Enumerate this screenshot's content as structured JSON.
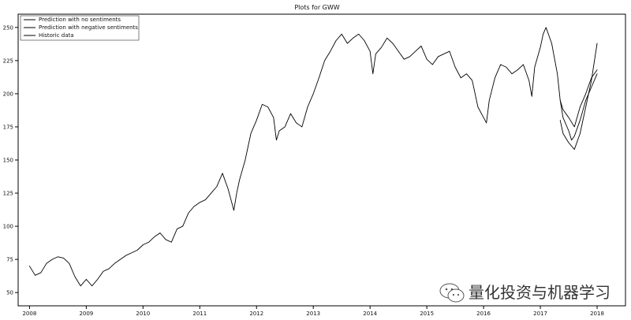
{
  "chart_data": {
    "type": "line",
    "title": "Plots for GWW",
    "xlabel": "",
    "ylabel": "",
    "xlim": [
      2007.8,
      2018.5
    ],
    "ylim": [
      40,
      260
    ],
    "x_ticks": [
      2008,
      2009,
      2010,
      2011,
      2012,
      2013,
      2014,
      2015,
      2016,
      2017,
      2018
    ],
    "y_ticks": [
      50,
      75,
      100,
      125,
      150,
      175,
      200,
      225,
      250
    ],
    "legend": {
      "placement": "top-left",
      "entries": [
        "Prediction with no sentiments",
        "Prediction with negative sentiments",
        "Historic data"
      ]
    },
    "series": [
      {
        "name": "Historic data",
        "x": [
          2008.0,
          2008.1,
          2008.2,
          2008.3,
          2008.4,
          2008.5,
          2008.6,
          2008.7,
          2008.8,
          2008.9,
          2009.0,
          2009.1,
          2009.2,
          2009.3,
          2009.4,
          2009.5,
          2009.6,
          2009.7,
          2009.8,
          2009.9,
          2010.0,
          2010.1,
          2010.2,
          2010.3,
          2010.4,
          2010.5,
          2010.6,
          2010.7,
          2010.8,
          2010.9,
          2011.0,
          2011.1,
          2011.2,
          2011.3,
          2011.4,
          2011.5,
          2011.6,
          2011.65,
          2011.7,
          2011.8,
          2011.9,
          2012.0,
          2012.1,
          2012.2,
          2012.3,
          2012.35,
          2012.4,
          2012.5,
          2012.6,
          2012.7,
          2012.8,
          2012.9,
          2013.0,
          2013.1,
          2013.2,
          2013.3,
          2013.4,
          2013.5,
          2013.6,
          2013.7,
          2013.8,
          2013.9,
          2014.0,
          2014.05,
          2014.1,
          2014.2,
          2014.3,
          2014.4,
          2014.5,
          2014.6,
          2014.7,
          2014.8,
          2014.9,
          2015.0,
          2015.1,
          2015.2,
          2015.3,
          2015.4,
          2015.5,
          2015.6,
          2015.7,
          2015.8,
          2015.9,
          2016.0,
          2016.05,
          2016.1,
          2016.2,
          2016.3,
          2016.4,
          2016.5,
          2016.6,
          2016.7,
          2016.8,
          2016.85,
          2016.9,
          2017.0,
          2017.05,
          2017.1,
          2017.2,
          2017.3,
          2017.35,
          2017.4,
          2017.5,
          2017.55,
          2017.6,
          2017.7,
          2017.8,
          2017.9,
          2018.0
        ],
        "y": [
          70,
          63,
          65,
          72,
          75,
          77,
          76,
          72,
          62,
          55,
          60,
          55,
          60,
          66,
          68,
          72,
          75,
          78,
          80,
          82,
          86,
          88,
          92,
          95,
          90,
          88,
          98,
          100,
          110,
          115,
          118,
          120,
          125,
          130,
          140,
          128,
          112,
          125,
          135,
          150,
          170,
          180,
          192,
          190,
          182,
          165,
          172,
          175,
          185,
          178,
          175,
          190,
          200,
          212,
          225,
          232,
          240,
          245,
          238,
          242,
          245,
          240,
          232,
          215,
          230,
          235,
          242,
          238,
          232,
          226,
          228,
          232,
          236,
          226,
          222,
          228,
          230,
          232,
          220,
          212,
          215,
          210,
          190,
          182,
          178,
          195,
          212,
          222,
          220,
          215,
          218,
          222,
          210,
          198,
          220,
          235,
          245,
          250,
          238,
          215,
          195,
          182,
          172,
          165,
          168,
          180,
          195,
          205,
          215
        ]
      },
      {
        "name": "Prediction with no sentiments",
        "x": [
          2017.35,
          2017.4,
          2017.5,
          2017.6,
          2017.7,
          2017.8,
          2017.9,
          2018.0
        ],
        "y": [
          195,
          188,
          182,
          175,
          190,
          200,
          212,
          218
        ]
      },
      {
        "name": "Prediction with negative sentiments",
        "x": [
          2017.35,
          2017.4,
          2017.5,
          2017.6,
          2017.7,
          2017.8,
          2017.9,
          2018.0
        ],
        "y": [
          180,
          170,
          163,
          158,
          170,
          190,
          210,
          238
        ]
      }
    ],
    "colors": {
      "lines": "#000000",
      "axis": "#000000"
    },
    "grid": false
  },
  "watermark_text": "量化投资与机器学习"
}
